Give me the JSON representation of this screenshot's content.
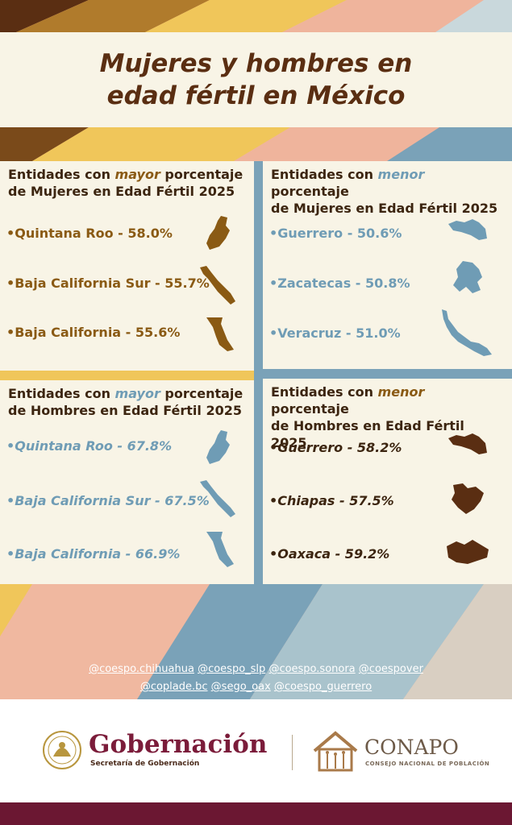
{
  "title": {
    "line1": "Mujeres y hombres en",
    "line2": "edad fértil en México"
  },
  "panels": {
    "women_high": {
      "title_a": "Entidades con ",
      "title_hl": "mayor",
      "title_b": " porcentaje",
      "title_line2": "de Mujeres en Edad Fértil 2025",
      "items": [
        "•Quintana Roo - 58.0%",
        "•Baja California Sur - 55.7%",
        "•Baja California - 55.6%"
      ]
    },
    "women_low": {
      "title_a": "Entidades con ",
      "title_hl": "menor",
      "title_b": " porcentaje",
      "title_line2": "de Mujeres en Edad Fértil 2025",
      "items": [
        "•Guerrero - 50.6%",
        "•Zacatecas - 50.8%",
        "•Veracruz - 51.0%"
      ]
    },
    "men_high": {
      "title_a": "Entidades con ",
      "title_hl": "mayor",
      "title_b": " porcentaje",
      "title_line2": "de Hombres en Edad Fértil 2025",
      "items": [
        "•Quintana Roo - 67.8%",
        "•Baja California Sur - 67.5%",
        "•Baja California - 66.9%"
      ]
    },
    "men_low": {
      "title_a": "Entidades con ",
      "title_hl": "menor",
      "title_b": " porcentaje",
      "title_line2": "de Hombres en Edad Fértil 2025",
      "items": [
        "•Guerrero - 58.2%",
        "•Chiapas - 57.5%",
        "•Oaxaca - 59.2%"
      ]
    }
  },
  "tags": {
    "line1": [
      "@coespo.chihuahua",
      "@coespo_slp",
      "@coespo.sonora",
      "@coespover"
    ],
    "line2": [
      "@coplade.bc",
      "@sego_oax",
      "@coespo_guerrero"
    ]
  },
  "footer": {
    "gob_name": "Gobernación",
    "gob_sub": "Secretaría de Gobernación",
    "conapo_name": "CONAPO",
    "conapo_sub": "CONSEJO NACIONAL DE POBLACIÓN"
  },
  "colors": {
    "brown": "#8a5a14",
    "blue": "#6f9cb5",
    "dark_brown": "#5a2e12",
    "maroon": "#6b1732",
    "cream": "#f8f4e6"
  }
}
